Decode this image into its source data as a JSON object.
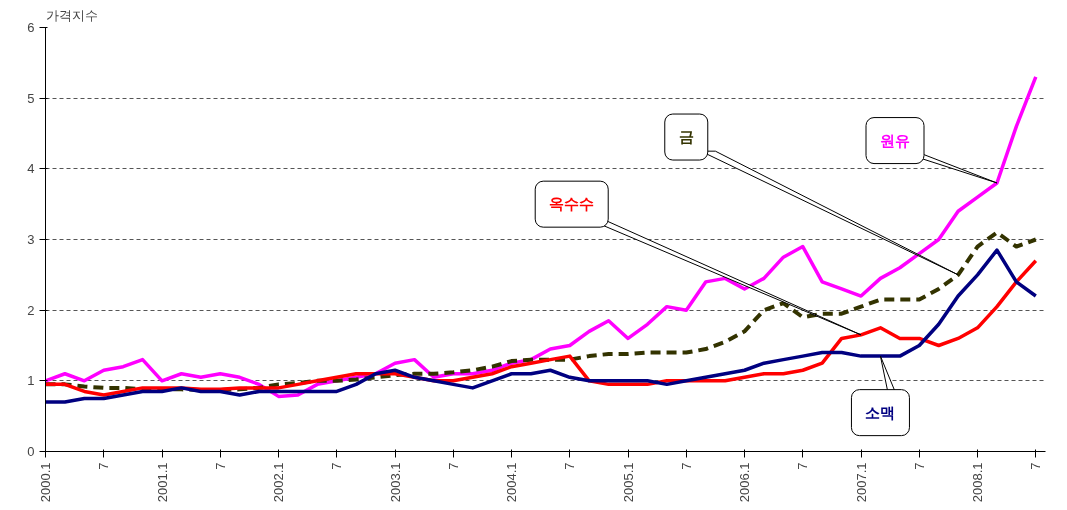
{
  "chart_data": {
    "type": "line",
    "ylabel": "가격지수",
    "x": [
      "2000-01",
      "2000-03",
      "2000-05",
      "2000-07",
      "2000-09",
      "2000-11",
      "2001-01",
      "2001-03",
      "2001-05",
      "2001-07",
      "2001-09",
      "2001-11",
      "2002-01",
      "2002-03",
      "2002-05",
      "2002-07",
      "2002-09",
      "2002-11",
      "2003-01",
      "2003-03",
      "2003-05",
      "2003-07",
      "2003-09",
      "2003-11",
      "2004-01",
      "2004-03",
      "2004-05",
      "2004-07",
      "2004-09",
      "2004-11",
      "2005-01",
      "2005-03",
      "2005-05",
      "2005-07",
      "2005-09",
      "2005-11",
      "2006-01",
      "2006-03",
      "2006-05",
      "2006-07",
      "2006-09",
      "2006-11",
      "2007-01",
      "2007-03",
      "2007-05",
      "2007-07",
      "2007-09",
      "2007-11",
      "2008-01",
      "2008-03",
      "2008-05",
      "2008-07"
    ],
    "series": [
      {
        "name": "원유",
        "color": "#ff00ff",
        "values": [
          1.0,
          1.1,
          1.0,
          1.15,
          1.2,
          1.3,
          1.0,
          1.1,
          1.05,
          1.1,
          1.05,
          0.95,
          0.78,
          0.8,
          0.95,
          1.0,
          1.05,
          1.1,
          1.25,
          1.3,
          1.05,
          1.1,
          1.1,
          1.15,
          1.25,
          1.3,
          1.45,
          1.5,
          1.7,
          1.85,
          1.6,
          1.8,
          2.05,
          2.0,
          2.4,
          2.45,
          2.3,
          2.45,
          2.75,
          2.9,
          2.4,
          2.3,
          2.2,
          2.45,
          2.6,
          2.8,
          3.0,
          3.4,
          3.6,
          3.8,
          4.6,
          5.3
        ]
      },
      {
        "name": "금",
        "color": "#333300",
        "line_style": "dashed",
        "values": [
          0.95,
          0.95,
          0.92,
          0.9,
          0.9,
          0.88,
          0.88,
          0.88,
          0.87,
          0.87,
          0.88,
          0.9,
          0.95,
          0.97,
          1.0,
          1.0,
          1.02,
          1.05,
          1.08,
          1.1,
          1.1,
          1.12,
          1.15,
          1.2,
          1.28,
          1.3,
          1.3,
          1.3,
          1.35,
          1.38,
          1.38,
          1.4,
          1.4,
          1.4,
          1.45,
          1.55,
          1.7,
          2.0,
          2.1,
          1.9,
          1.95,
          1.95,
          2.05,
          2.15,
          2.15,
          2.15,
          2.3,
          2.5,
          2.9,
          3.1,
          2.9,
          3.0
        ]
      },
      {
        "name": "옥수수",
        "color": "#ff0000",
        "values": [
          0.95,
          0.95,
          0.85,
          0.8,
          0.85,
          0.9,
          0.9,
          0.9,
          0.88,
          0.88,
          0.9,
          0.9,
          0.9,
          0.95,
          1.0,
          1.05,
          1.1,
          1.1,
          1.1,
          1.05,
          1.0,
          1.0,
          1.05,
          1.1,
          1.2,
          1.25,
          1.3,
          1.35,
          1.0,
          0.95,
          0.95,
          0.95,
          1.0,
          1.0,
          1.0,
          1.0,
          1.05,
          1.1,
          1.1,
          1.15,
          1.25,
          1.6,
          1.65,
          1.75,
          1.6,
          1.6,
          1.5,
          1.6,
          1.75,
          2.05,
          2.4,
          2.7
        ]
      },
      {
        "name": "소맥",
        "color": "#000080",
        "values": [
          0.7,
          0.7,
          0.75,
          0.75,
          0.8,
          0.85,
          0.85,
          0.9,
          0.85,
          0.85,
          0.8,
          0.85,
          0.85,
          0.85,
          0.85,
          0.85,
          0.95,
          1.1,
          1.15,
          1.05,
          1.0,
          0.95,
          0.9,
          1.0,
          1.1,
          1.1,
          1.15,
          1.05,
          1.0,
          1.0,
          1.0,
          1.0,
          0.95,
          1.0,
          1.05,
          1.1,
          1.15,
          1.25,
          1.3,
          1.35,
          1.4,
          1.4,
          1.35,
          1.35,
          1.35,
          1.5,
          1.8,
          2.2,
          2.5,
          2.85,
          2.4,
          2.2
        ]
      }
    ],
    "xlim": [
      "2000-01",
      "2008-08"
    ],
    "xticks": [
      {
        "value": "2000-01",
        "label": "2000.1"
      },
      {
        "value": "2000-07",
        "label": "7"
      },
      {
        "value": "2001-01",
        "label": "2001.1"
      },
      {
        "value": "2001-07",
        "label": "7"
      },
      {
        "value": "2002-01",
        "label": "2002.1"
      },
      {
        "value": "2002-07",
        "label": "7"
      },
      {
        "value": "2003-01",
        "label": "2003.1"
      },
      {
        "value": "2003-07",
        "label": "7"
      },
      {
        "value": "2004-01",
        "label": "2004.1"
      },
      {
        "value": "2004-07",
        "label": "7"
      },
      {
        "value": "2005-01",
        "label": "2005.1"
      },
      {
        "value": "2005-07",
        "label": "7"
      },
      {
        "value": "2006-01",
        "label": "2006.1"
      },
      {
        "value": "2006-07",
        "label": "7"
      },
      {
        "value": "2007-01",
        "label": "2007.1"
      },
      {
        "value": "2007-07",
        "label": "7"
      },
      {
        "value": "2008-01",
        "label": "2008.1"
      },
      {
        "value": "2008-07",
        "label": "7"
      }
    ],
    "ylim": [
      0,
      6
    ],
    "yticks": [
      0,
      1,
      2,
      3,
      4,
      5,
      6
    ],
    "grid": "y"
  }
}
